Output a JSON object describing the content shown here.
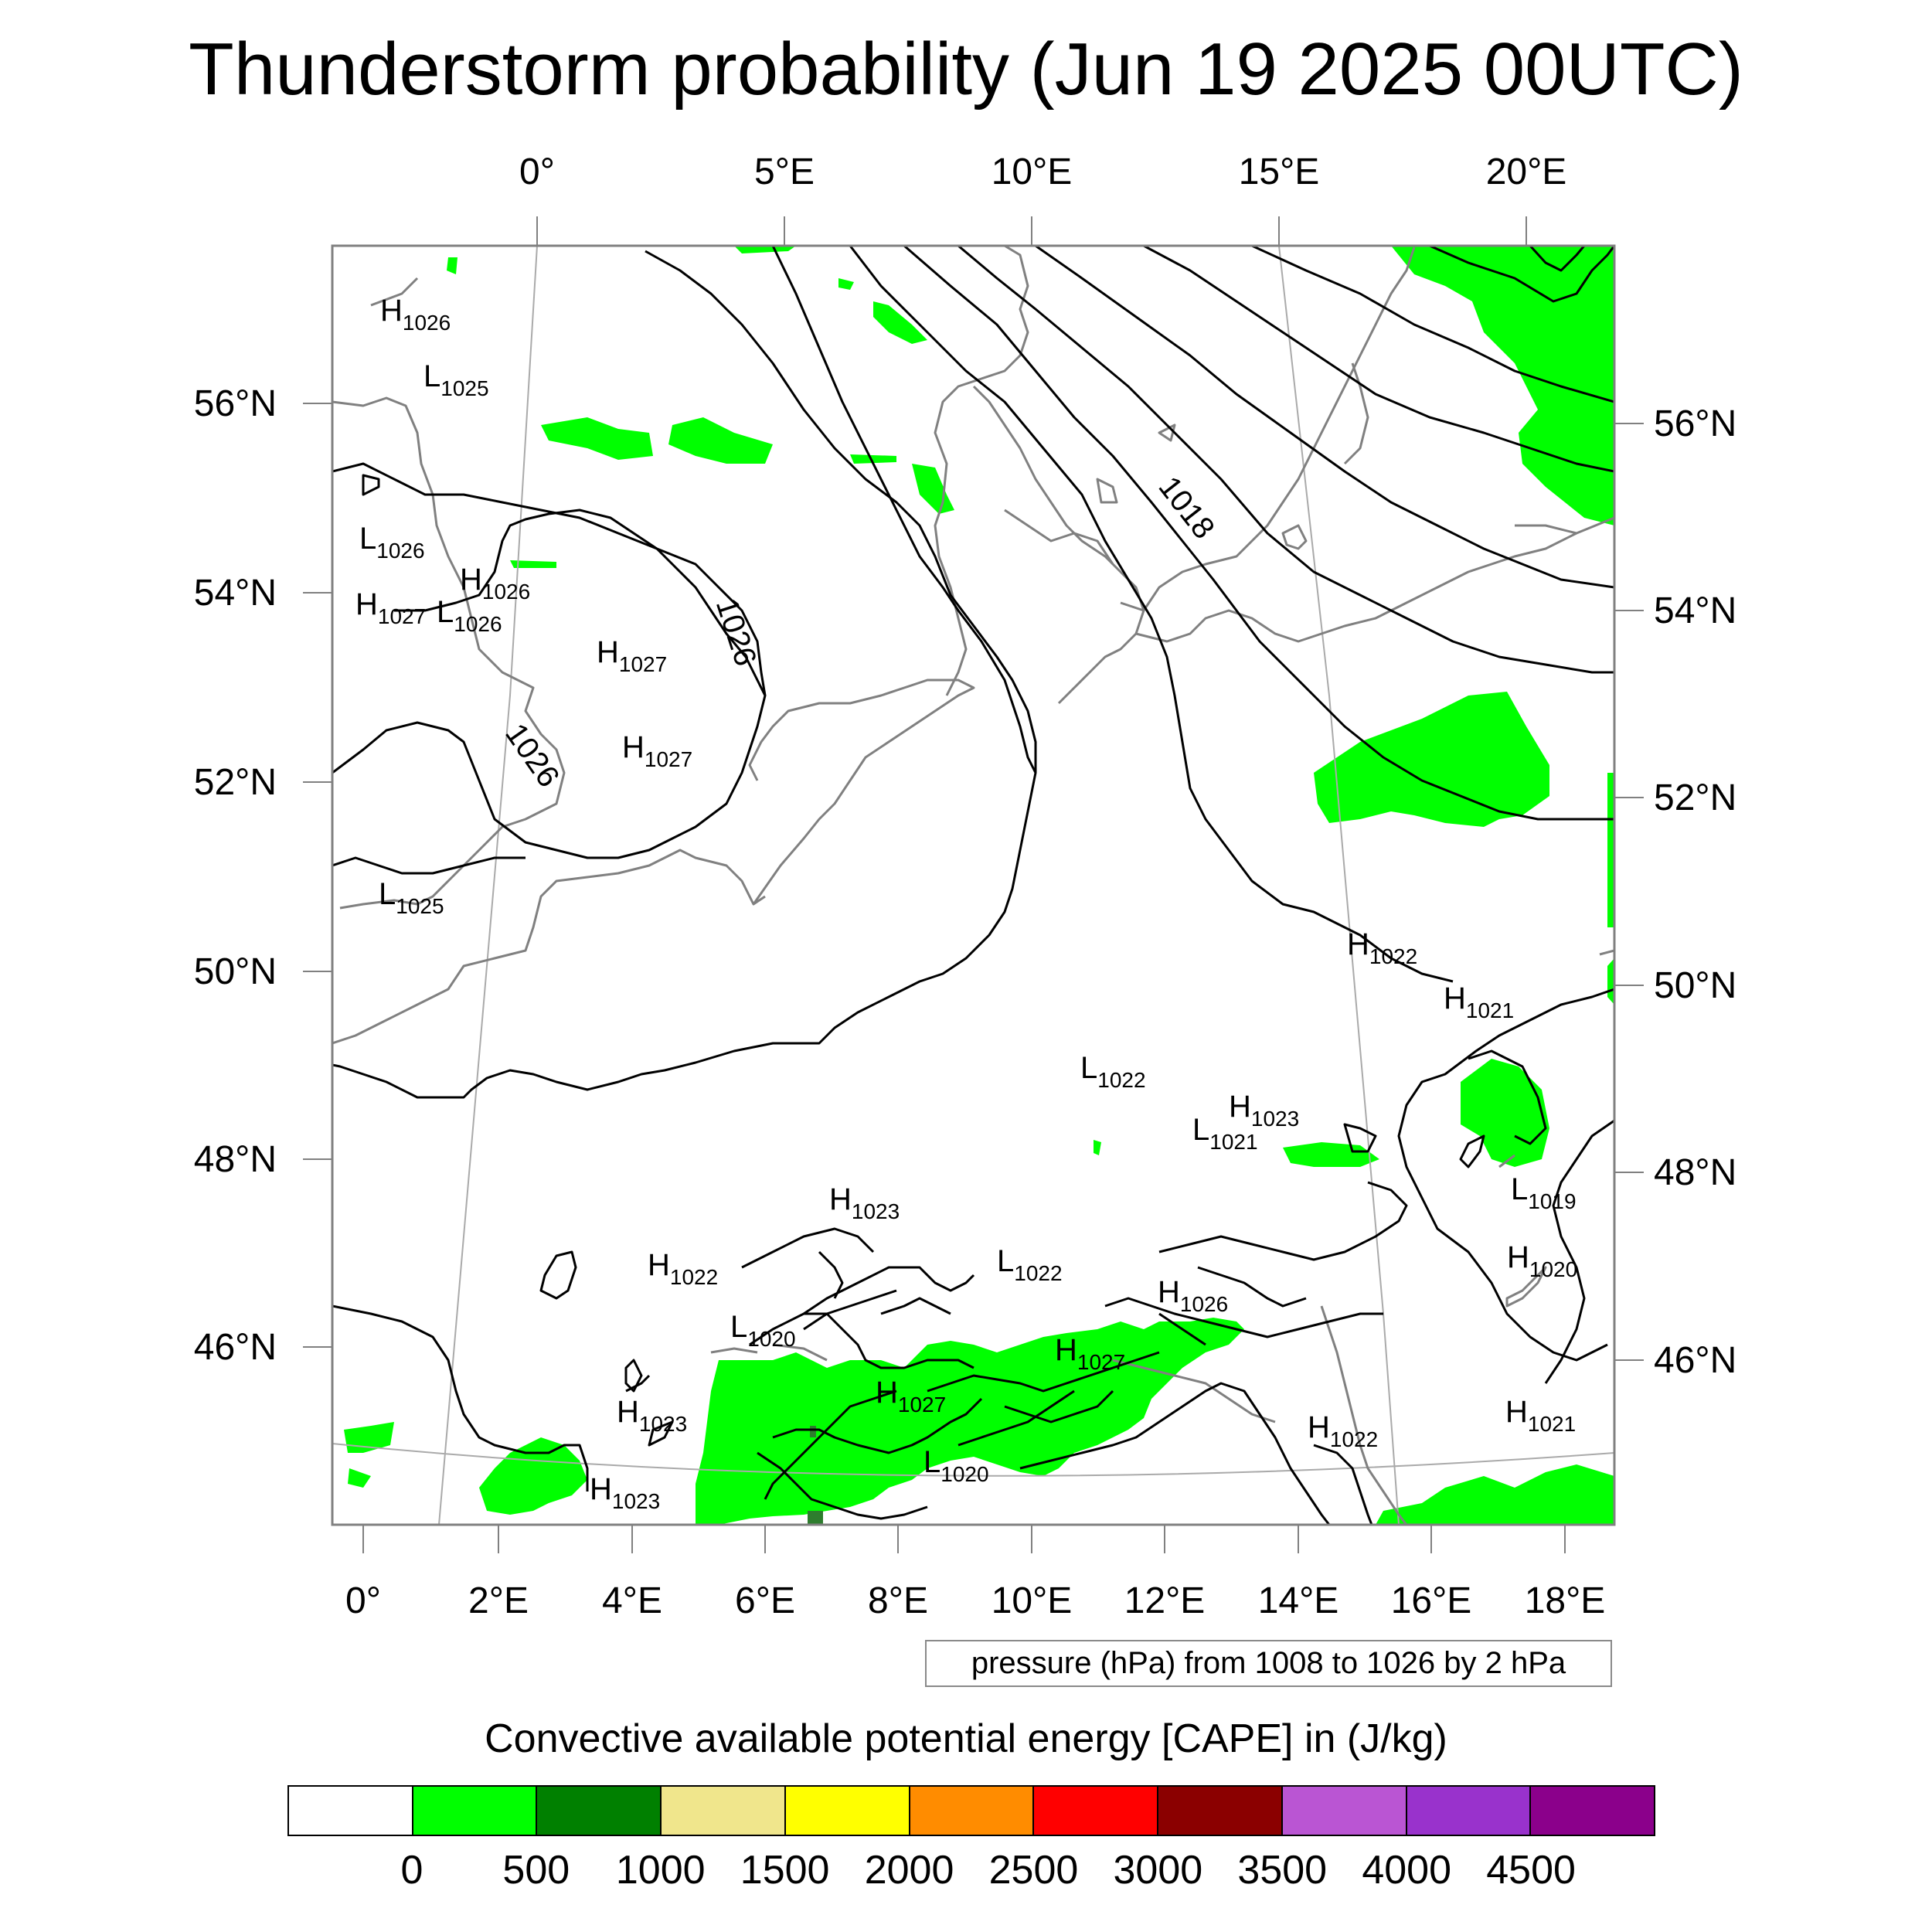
{
  "title": "Thunderstorm probability (Jun 19 2025 00UTC)",
  "axes": {
    "top_lon_labels": [
      "0°",
      "5°E",
      "10°E",
      "15°E",
      "20°E"
    ],
    "bottom_lon_labels": [
      "0°",
      "2°E",
      "4°E",
      "6°E",
      "8°E",
      "10°E",
      "12°E",
      "14°E",
      "16°E",
      "18°E"
    ],
    "left_lat_labels": [
      "56°N",
      "54°N",
      "52°N",
      "50°N",
      "48°N",
      "46°N"
    ],
    "right_lat_labels": [
      "56°N",
      "54°N",
      "52°N",
      "50°N",
      "48°N",
      "46°N"
    ]
  },
  "contour_labels": [
    "1018",
    "1026",
    "1026"
  ],
  "pressure_centers": [
    {
      "type": "H",
      "value": "1026"
    },
    {
      "type": "L",
      "value": "1025"
    },
    {
      "type": "L",
      "value": "1026"
    },
    {
      "type": "H",
      "value": "1026"
    },
    {
      "type": "H",
      "value": "1027"
    },
    {
      "type": "L",
      "value": "1026"
    },
    {
      "type": "H",
      "value": "1027"
    },
    {
      "type": "H",
      "value": "1027"
    },
    {
      "type": "L",
      "value": "1025"
    },
    {
      "type": "H",
      "value": "1022"
    },
    {
      "type": "H",
      "value": "1021"
    },
    {
      "type": "L",
      "value": "1022"
    },
    {
      "type": "H",
      "value": "1023"
    },
    {
      "type": "L",
      "value": "1021"
    },
    {
      "type": "L",
      "value": "1019"
    },
    {
      "type": "H",
      "value": "1023"
    },
    {
      "type": "H",
      "value": "1022"
    },
    {
      "type": "L",
      "value": "1022"
    },
    {
      "type": "H",
      "value": "1020"
    },
    {
      "type": "H",
      "value": "1026"
    },
    {
      "type": "L",
      "value": "1020"
    },
    {
      "type": "H",
      "value": "1027"
    },
    {
      "type": "H",
      "value": "1027"
    },
    {
      "type": "H",
      "value": "1023"
    },
    {
      "type": "L",
      "value": "1020"
    },
    {
      "type": "H",
      "value": "1023"
    },
    {
      "type": "H",
      "value": "1022"
    },
    {
      "type": "H",
      "value": "1021"
    }
  ],
  "contour_note": "pressure (hPa) from 1008 to 1026 by 2 hPa",
  "colorbar": {
    "title": "Convective available potential energy [CAPE] in (J/kg)",
    "colors": [
      "#ffffff",
      "#00ff00",
      "#008000",
      "#f0e68c",
      "#ffff00",
      "#ff8c00",
      "#ff0000",
      "#8b0000",
      "#ba55d3",
      "#9932cc",
      "#8b008b"
    ],
    "labels": [
      "0",
      "500",
      "1000",
      "1500",
      "2000",
      "2500",
      "3000",
      "3500",
      "4000",
      "4500"
    ]
  },
  "colors": {
    "cape_fill": "#00ff00",
    "cape_dark": "#2e7d2e",
    "isobar": "#000000",
    "coastline": "#808080",
    "grid": "#aaaaaa",
    "frame": "#808080"
  }
}
